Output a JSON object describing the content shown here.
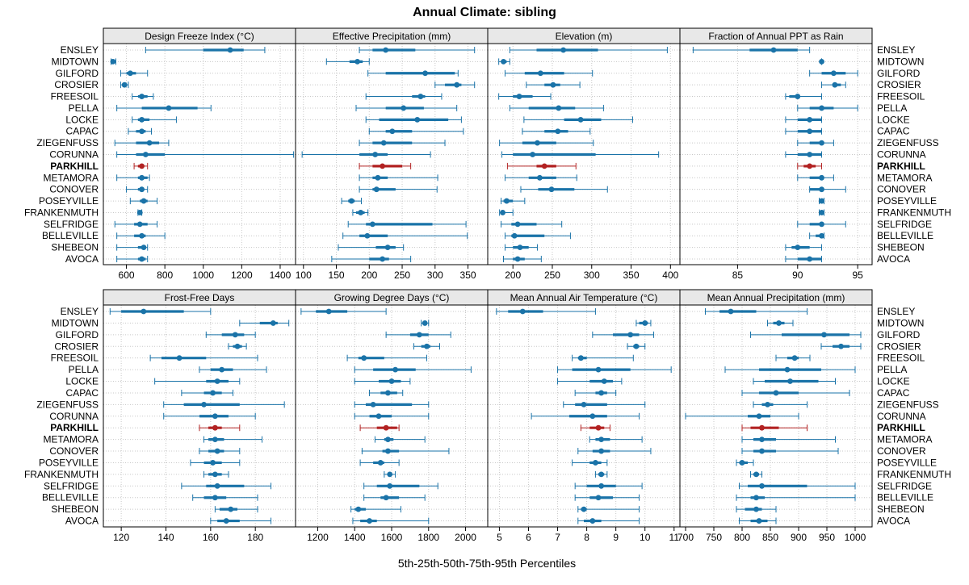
{
  "chart_data": {
    "type": "dot-interval",
    "title": "Annual Climate: sibling",
    "xlabel": "5th-25th-50th-75th-95th Percentiles",
    "highlight": "PARKHILL",
    "colors": {
      "normal": "#1a73a8",
      "highlight": "#b22222",
      "strip": "#e8e8e8",
      "grid": "#c8c8c8"
    },
    "stations": [
      "ENSLEY",
      "MIDTOWN",
      "GILFORD",
      "CROSIER",
      "FREESOIL",
      "PELLA",
      "LOCKE",
      "CAPAC",
      "ZIEGENFUSS",
      "CORUNNA",
      "PARKHILL",
      "METAMORA",
      "CONOVER",
      "POSEYVILLE",
      "FRANKENMUTH",
      "SELFRIDGE",
      "BELLEVILLE",
      "SHEBEON",
      "AVOCA"
    ],
    "panels": [
      {
        "title": "Design Freeze Index (°C)",
        "xlim": [
          480,
          1480
        ],
        "ticks": [
          600,
          800,
          1000,
          1200,
          1400
        ],
        "data": [
          [
            700,
            1000,
            1140,
            1210,
            1320
          ],
          [
            520,
            525,
            530,
            540,
            545
          ],
          [
            570,
            600,
            620,
            650,
            710
          ],
          [
            570,
            580,
            590,
            600,
            610
          ],
          [
            630,
            660,
            680,
            710,
            740
          ],
          [
            550,
            680,
            820,
            970,
            1040
          ],
          [
            630,
            660,
            680,
            720,
            860
          ],
          [
            610,
            650,
            680,
            700,
            730
          ],
          [
            540,
            650,
            720,
            770,
            820
          ],
          [
            550,
            650,
            700,
            800,
            1470
          ],
          [
            640,
            660,
            680,
            690,
            710
          ],
          [
            550,
            660,
            680,
            710,
            720
          ],
          [
            600,
            660,
            680,
            690,
            710
          ],
          [
            620,
            670,
            690,
            710,
            760
          ],
          [
            660,
            665,
            670,
            675,
            680
          ],
          [
            540,
            640,
            670,
            710,
            760
          ],
          [
            550,
            640,
            680,
            700,
            800
          ],
          [
            550,
            660,
            690,
            700,
            710
          ],
          [
            550,
            660,
            680,
            700,
            710
          ]
        ]
      },
      {
        "title": "Effective Precipitation (mm)",
        "xlim": [
          88,
          380
        ],
        "ticks": [
          100,
          150,
          200,
          250,
          300,
          350
        ],
        "data": [
          [
            185,
            205,
            225,
            270,
            360
          ],
          [
            135,
            170,
            182,
            190,
            200
          ],
          [
            198,
            225,
            285,
            330,
            335
          ],
          [
            300,
            315,
            333,
            340,
            360
          ],
          [
            195,
            265,
            278,
            285,
            310
          ],
          [
            180,
            225,
            252,
            283,
            333
          ],
          [
            195,
            215,
            273,
            320,
            340
          ],
          [
            200,
            225,
            235,
            265,
            343
          ],
          [
            185,
            205,
            222,
            265,
            315
          ],
          [
            98,
            185,
            209,
            228,
            293
          ],
          [
            185,
            205,
            220,
            250,
            263
          ],
          [
            185,
            205,
            213,
            228,
            304
          ],
          [
            185,
            205,
            211,
            240,
            303
          ],
          [
            158,
            168,
            173,
            178,
            188
          ],
          [
            175,
            180,
            187,
            193,
            198
          ],
          [
            168,
            195,
            205,
            296,
            347
          ],
          [
            160,
            185,
            197,
            228,
            349
          ],
          [
            153,
            210,
            228,
            240,
            252
          ],
          [
            143,
            200,
            220,
            230,
            263
          ]
        ]
      },
      {
        "title": "Elevation (m)",
        "xlim": [
          168,
          412
        ],
        "ticks": [
          200,
          250,
          300,
          350,
          400
        ],
        "data": [
          [
            196,
            230,
            264,
            308,
            396
          ],
          [
            182,
            185,
            188,
            192,
            196
          ],
          [
            190,
            215,
            235,
            265,
            301
          ],
          [
            217,
            240,
            251,
            260,
            285
          ],
          [
            182,
            200,
            208,
            225,
            248
          ],
          [
            196,
            220,
            258,
            279,
            315
          ],
          [
            214,
            265,
            286,
            312,
            352
          ],
          [
            212,
            240,
            257,
            270,
            298
          ],
          [
            183,
            212,
            231,
            255,
            302
          ],
          [
            186,
            200,
            225,
            305,
            385
          ],
          [
            193,
            230,
            240,
            255,
            280
          ],
          [
            190,
            220,
            234,
            255,
            281
          ],
          [
            210,
            232,
            249,
            278,
            320
          ],
          [
            185,
            188,
            192,
            200,
            215
          ],
          [
            183,
            185,
            187,
            190,
            200
          ],
          [
            185,
            198,
            206,
            230,
            262
          ],
          [
            190,
            198,
            202,
            240,
            273
          ],
          [
            190,
            200,
            209,
            220,
            231
          ],
          [
            188,
            200,
            206,
            215,
            236
          ]
        ]
      },
      {
        "title": "Fraction of Annual PPT as Rain",
        "xlim": [
          80.2,
          96.2
        ],
        "ticks": [
          85,
          90,
          95
        ],
        "data": [
          [
            81.3,
            86,
            88,
            90,
            91
          ],
          [
            92,
            92,
            92,
            92,
            92
          ],
          [
            91,
            92,
            93,
            94,
            95
          ],
          [
            92,
            93,
            93.1,
            93.6,
            94
          ],
          [
            89,
            89.3,
            90,
            90,
            92
          ],
          [
            90,
            91,
            92,
            93,
            95
          ],
          [
            89,
            90,
            91,
            92,
            92
          ],
          [
            89,
            90,
            91,
            92,
            92
          ],
          [
            90,
            91,
            92,
            92,
            93
          ],
          [
            89,
            90,
            91,
            92,
            92
          ],
          [
            90,
            90.5,
            91,
            91.5,
            92
          ],
          [
            90,
            91,
            92,
            92,
            93
          ],
          [
            91,
            91,
            92,
            92,
            94
          ],
          [
            91.8,
            91.9,
            92,
            92.1,
            92.2
          ],
          [
            91.8,
            91.9,
            92,
            92.1,
            92.2
          ],
          [
            90,
            91,
            92,
            92,
            94
          ],
          [
            91,
            91.5,
            92,
            92.1,
            92.2
          ],
          [
            89,
            89.5,
            90,
            91,
            92
          ],
          [
            89,
            90,
            91,
            92,
            92
          ]
        ]
      },
      {
        "title": "Frost-Free Days",
        "xlim": [
          112,
          198
        ],
        "ticks": [
          120,
          140,
          160,
          180
        ],
        "data": [
          [
            115,
            120,
            130,
            148,
            160
          ],
          [
            173,
            182,
            188,
            190,
            195
          ],
          [
            158,
            165,
            171,
            175,
            180
          ],
          [
            168,
            170,
            172,
            174,
            176
          ],
          [
            133,
            138,
            146,
            158,
            181
          ],
          [
            155,
            160,
            165,
            170,
            185
          ],
          [
            135,
            158,
            163,
            168,
            173
          ],
          [
            147,
            157,
            161,
            165,
            170
          ],
          [
            139,
            148,
            157,
            173,
            193
          ],
          [
            139,
            155,
            162,
            168,
            180
          ],
          [
            155,
            159,
            162,
            165,
            173
          ],
          [
            157,
            159,
            162,
            166,
            183
          ],
          [
            155,
            159,
            163,
            166,
            173
          ],
          [
            151,
            157,
            161,
            165,
            173
          ],
          [
            157,
            159,
            162,
            165,
            168
          ],
          [
            147,
            158,
            163,
            175,
            187
          ],
          [
            152,
            157,
            162,
            167,
            181
          ],
          [
            162,
            164,
            169,
            172,
            181
          ],
          [
            160,
            163,
            167,
            173,
            187
          ]
        ]
      },
      {
        "title": "Growing Degree Days (°C)",
        "xlim": [
          1080,
          2120
        ],
        "ticks": [
          1200,
          1400,
          1600,
          1800,
          2000
        ],
        "data": [
          [
            1110,
            1190,
            1260,
            1360,
            1570
          ],
          [
            1760,
            1770,
            1780,
            1790,
            1800
          ],
          [
            1570,
            1700,
            1750,
            1800,
            1920
          ],
          [
            1720,
            1760,
            1790,
            1810,
            1860
          ],
          [
            1360,
            1420,
            1450,
            1560,
            1790
          ],
          [
            1400,
            1500,
            1620,
            1730,
            2030
          ],
          [
            1400,
            1530,
            1600,
            1650,
            1700
          ],
          [
            1480,
            1540,
            1580,
            1630,
            1660
          ],
          [
            1400,
            1460,
            1500,
            1710,
            1800
          ],
          [
            1400,
            1480,
            1530,
            1600,
            1800
          ],
          [
            1430,
            1520,
            1570,
            1630,
            1640
          ],
          [
            1510,
            1560,
            1580,
            1610,
            1780
          ],
          [
            1440,
            1550,
            1580,
            1640,
            1910
          ],
          [
            1430,
            1500,
            1540,
            1560,
            1640
          ],
          [
            1560,
            1580,
            1590,
            1600,
            1620
          ],
          [
            1450,
            1520,
            1590,
            1750,
            1850
          ],
          [
            1450,
            1540,
            1570,
            1640,
            1780
          ],
          [
            1380,
            1400,
            1420,
            1460,
            1650
          ],
          [
            1390,
            1430,
            1480,
            1520,
            1800
          ]
        ]
      },
      {
        "title": "Mean Annual Air Temperature (°C)",
        "xlim": [
          4.6,
          11.2
        ],
        "ticks": [
          5,
          6,
          7,
          8,
          9,
          10,
          11
        ],
        "data": [
          [
            4.9,
            5.3,
            5.8,
            6.5,
            8.3
          ],
          [
            9.7,
            9.8,
            10.0,
            10.1,
            10.2
          ],
          [
            8.2,
            8.9,
            9.5,
            9.8,
            10.3
          ],
          [
            9.4,
            9.6,
            9.7,
            9.8,
            10.0
          ],
          [
            7.5,
            7.7,
            7.8,
            8.0,
            9.6
          ],
          [
            7.0,
            7.5,
            8.4,
            9.5,
            10.9
          ],
          [
            7.0,
            8.1,
            8.6,
            8.9,
            9.2
          ],
          [
            7.6,
            8.3,
            8.5,
            8.7,
            9.0
          ],
          [
            7.2,
            7.6,
            7.9,
            8.7,
            10.0
          ],
          [
            6.1,
            7.4,
            8.2,
            8.7,
            9.8
          ],
          [
            7.8,
            8.1,
            8.4,
            8.6,
            8.8
          ],
          [
            8.1,
            8.3,
            8.5,
            8.8,
            9.9
          ],
          [
            7.7,
            8.2,
            8.5,
            8.8,
            10.2
          ],
          [
            7.5,
            8.1,
            8.3,
            8.5,
            8.7
          ],
          [
            8.3,
            8.4,
            8.5,
            8.6,
            8.7
          ],
          [
            7.6,
            8.0,
            8.5,
            9.0,
            9.9
          ],
          [
            7.6,
            8.1,
            8.4,
            8.9,
            9.8
          ],
          [
            7.7,
            7.8,
            7.9,
            8.0,
            9.8
          ],
          [
            7.7,
            7.9,
            8.2,
            8.5,
            9.8
          ]
        ]
      },
      {
        "title": "Mean Annual Precipitation (mm)",
        "xlim": [
          690,
          1030
        ],
        "ticks": [
          700,
          750,
          800,
          850,
          900,
          950,
          1000
        ],
        "data": [
          [
            735,
            760,
            780,
            825,
            915
          ],
          [
            845,
            855,
            865,
            875,
            890
          ],
          [
            815,
            870,
            945,
            990,
            1010
          ],
          [
            940,
            960,
            975,
            990,
            1010
          ],
          [
            860,
            880,
            893,
            900,
            920
          ],
          [
            770,
            830,
            880,
            940,
            1000
          ],
          [
            820,
            840,
            885,
            935,
            965
          ],
          [
            800,
            830,
            860,
            900,
            990
          ],
          [
            820,
            835,
            845,
            855,
            915
          ],
          [
            700,
            810,
            830,
            850,
            900
          ],
          [
            800,
            815,
            835,
            865,
            915
          ],
          [
            800,
            820,
            835,
            860,
            965
          ],
          [
            800,
            820,
            835,
            860,
            970
          ],
          [
            790,
            795,
            800,
            810,
            820
          ],
          [
            815,
            820,
            825,
            830,
            835
          ],
          [
            795,
            810,
            835,
            915,
            1000
          ],
          [
            790,
            815,
            825,
            840,
            1000
          ],
          [
            790,
            805,
            825,
            835,
            860
          ],
          [
            795,
            815,
            830,
            845,
            860
          ]
        ]
      }
    ]
  }
}
